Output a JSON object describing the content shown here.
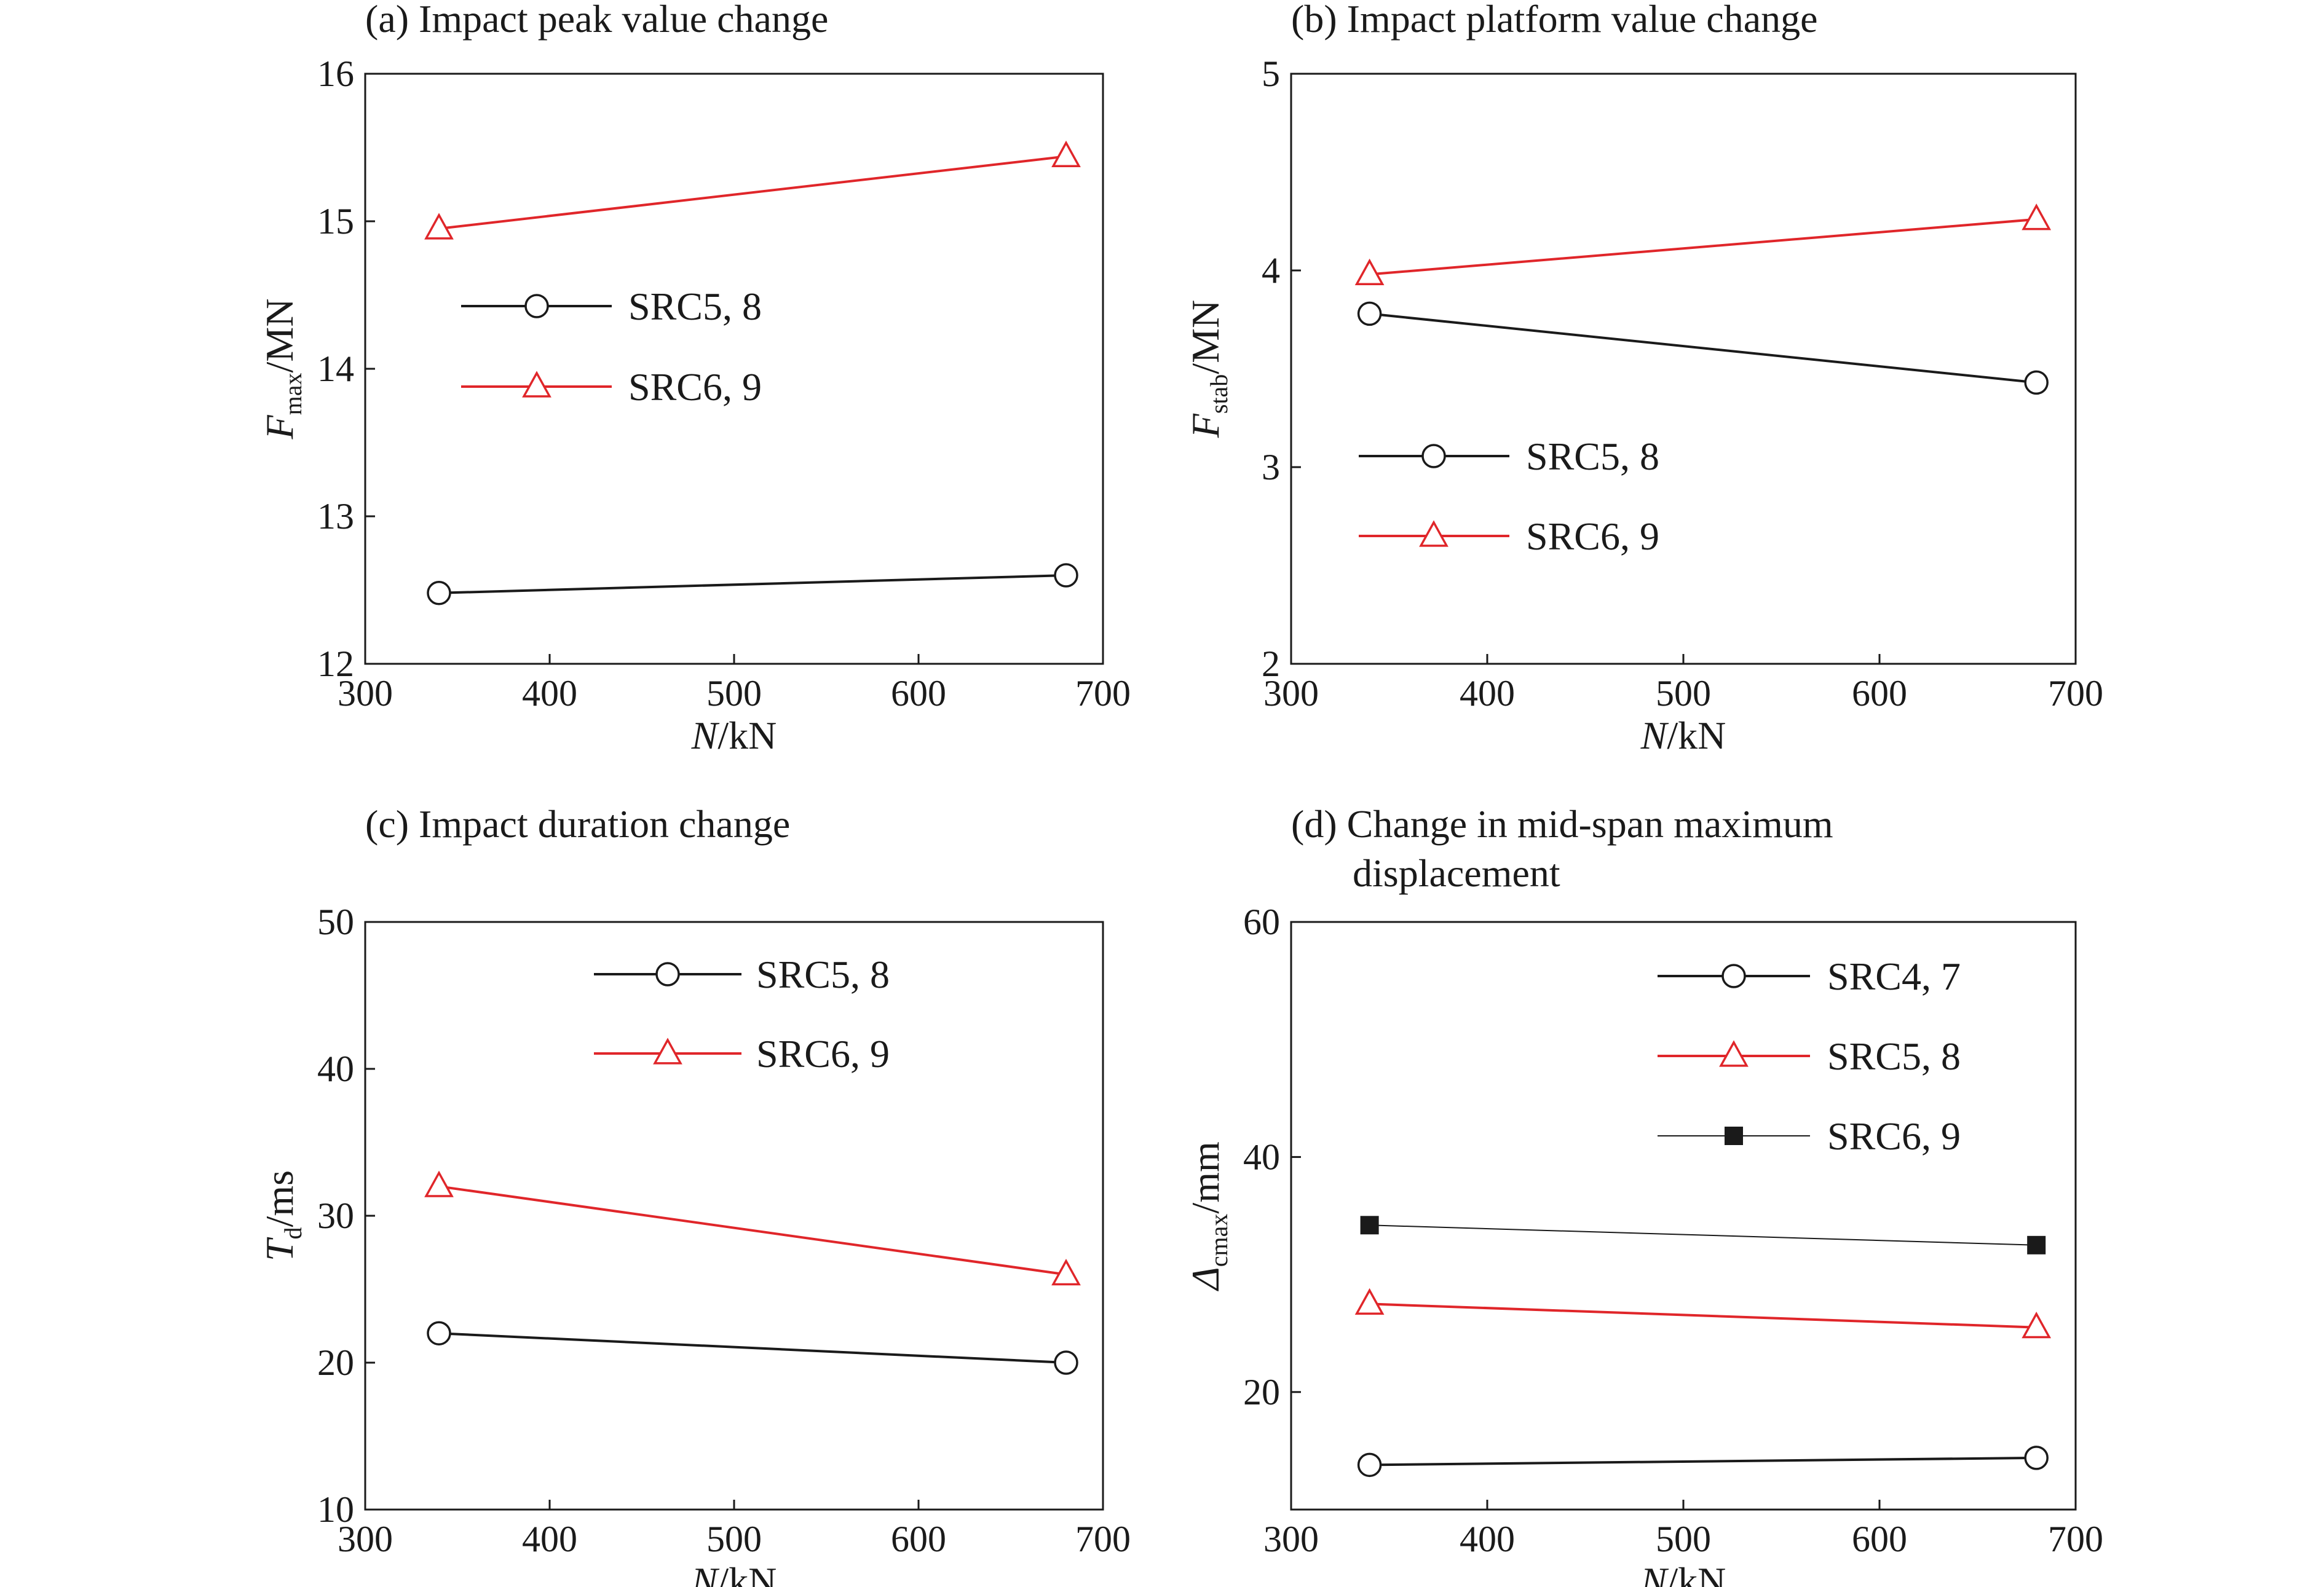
{
  "colors": {
    "black": "#1a1a1a",
    "red": "#e0262a"
  },
  "chart_data": [
    {
      "id": "a",
      "type": "line",
      "title": "(a) Impact peak value change",
      "xlabel": {
        "italic": "N",
        "rest": "/kN"
      },
      "ylabel": {
        "italic": "F",
        "sub": "max",
        "rest": "/MN"
      },
      "xlim": [
        300,
        700
      ],
      "ylim": [
        12,
        16
      ],
      "xticks": [
        300,
        400,
        500,
        600,
        700
      ],
      "xtick_labels": [
        "300",
        "400",
        "500",
        "600",
        "700"
      ],
      "yticks": [
        12,
        13,
        14,
        15,
        16
      ],
      "ytick_labels": [
        "12",
        "13",
        "14",
        "15",
        "16"
      ],
      "legend_position": "middle-left",
      "series": [
        {
          "name": "SRC5, 8",
          "marker": "circle",
          "color": "#1a1a1a",
          "x": [
            340,
            680
          ],
          "values": [
            12.48,
            12.6
          ]
        },
        {
          "name": "SRC6, 9",
          "marker": "triangle",
          "color": "#e0262a",
          "x": [
            340,
            680
          ],
          "values": [
            14.95,
            15.44
          ]
        }
      ]
    },
    {
      "id": "b",
      "type": "line",
      "title": "(b) Impact platform value change",
      "xlabel": {
        "italic": "N",
        "rest": "/kN"
      },
      "ylabel": {
        "italic": "F",
        "sub": "stab",
        "rest": "/MN"
      },
      "xlim": [
        300,
        700
      ],
      "ylim": [
        2,
        5
      ],
      "xticks": [
        300,
        400,
        500,
        600,
        700
      ],
      "xtick_labels": [
        "300",
        "400",
        "500",
        "600",
        "700"
      ],
      "yticks": [
        2,
        3,
        4,
        5
      ],
      "ytick_labels": [
        "2",
        "3",
        "4",
        "5"
      ],
      "legend_position": "lower-left",
      "series": [
        {
          "name": "SRC5, 8",
          "marker": "circle",
          "color": "#1a1a1a",
          "x": [
            340,
            680
          ],
          "values": [
            3.78,
            3.43
          ]
        },
        {
          "name": "SRC6, 9",
          "marker": "triangle",
          "color": "#e0262a",
          "x": [
            340,
            680
          ],
          "values": [
            3.98,
            4.26
          ]
        }
      ]
    },
    {
      "id": "c",
      "type": "line",
      "title": "(c) Impact duration change",
      "xlabel": {
        "italic": "N",
        "rest": "/kN"
      },
      "ylabel": {
        "italic": "T",
        "sub": "d",
        "rest": "/ms"
      },
      "xlim": [
        300,
        700
      ],
      "ylim": [
        10,
        50
      ],
      "xticks": [
        300,
        400,
        500,
        600,
        700
      ],
      "xtick_labels": [
        "300",
        "400",
        "500",
        "600",
        "700"
      ],
      "yticks": [
        10,
        20,
        30,
        40,
        50
      ],
      "ytick_labels": [
        "10",
        "20",
        "30",
        "40",
        "50"
      ],
      "legend_position": "top-center",
      "series": [
        {
          "name": "SRC5, 8",
          "marker": "circle",
          "color": "#1a1a1a",
          "x": [
            340,
            680
          ],
          "values": [
            22,
            20
          ]
        },
        {
          "name": "SRC6, 9",
          "marker": "triangle",
          "color": "#e0262a",
          "x": [
            340,
            680
          ],
          "values": [
            32,
            26
          ]
        }
      ]
    },
    {
      "id": "d",
      "type": "line",
      "title": "(d) Change in mid-span maximum",
      "title_line2": "displacement",
      "xlabel": {
        "italic": "N",
        "rest": "/kN"
      },
      "ylabel": {
        "italic": "Δ",
        "sub": "cmax",
        "rest": "/mm"
      },
      "xlim": [
        300,
        700
      ],
      "ylim": [
        10,
        60
      ],
      "xticks": [
        300,
        400,
        500,
        600,
        700
      ],
      "xtick_labels": [
        "300",
        "400",
        "500",
        "600",
        "700"
      ],
      "yticks": [
        20,
        40,
        60
      ],
      "ytick_labels": [
        "20",
        "40",
        "60"
      ],
      "legend_position": "top-right",
      "series": [
        {
          "name": "SRC4, 7",
          "marker": "circle",
          "color": "#1a1a1a",
          "x": [
            340,
            680
          ],
          "values": [
            13.8,
            14.4
          ]
        },
        {
          "name": "SRC5, 8",
          "marker": "triangle",
          "color": "#e0262a",
          "x": [
            340,
            680
          ],
          "values": [
            27.5,
            25.5
          ]
        },
        {
          "name": "SRC6, 9",
          "marker": "square",
          "color": "#1a1a1a",
          "thin": true,
          "x": [
            340,
            680
          ],
          "values": [
            34.2,
            32.5
          ]
        }
      ]
    }
  ]
}
